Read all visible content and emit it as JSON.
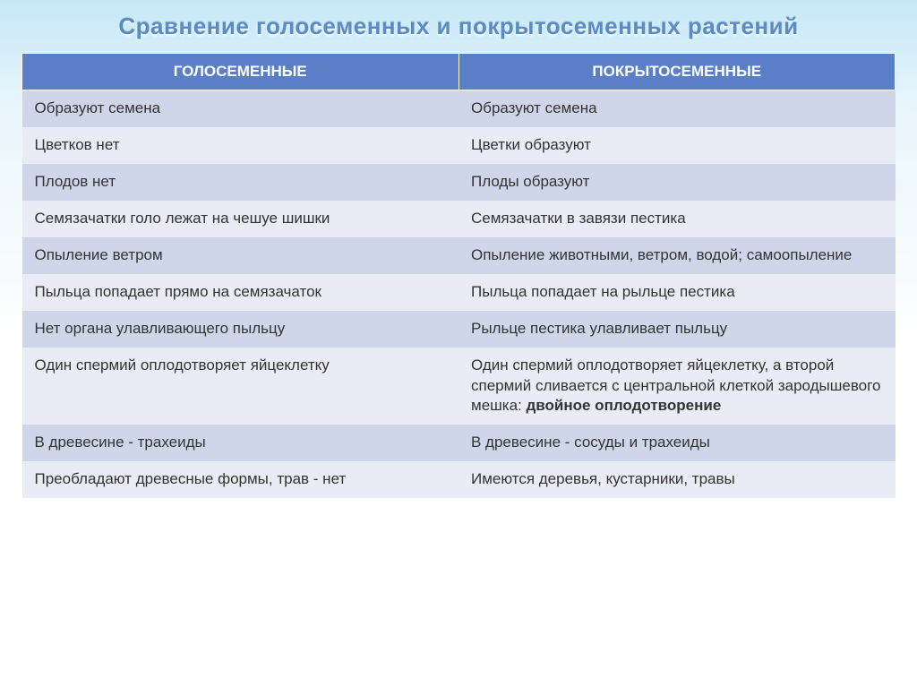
{
  "title": "Сравнение голосеменных и покрытосеменных растений",
  "headers": {
    "l": "ГОЛОСЕМЕННЫЕ",
    "r": "ПОКРЫТОСЕМЕННЫЕ"
  },
  "rows": [
    {
      "l": "Образуют семена",
      "r": "Образуют семена"
    },
    {
      "l": "Цветков нет",
      "r": "Цветки образуют"
    },
    {
      "l": "Плодов нет",
      "r": "Плоды образуют"
    },
    {
      "l": "Семязачатки голо лежат на чешуе шишки",
      "r": "Семязачатки в завязи пестика"
    },
    {
      "l": "Опыление ветром",
      "r": "Опыление животными, ветром, водой; самоопыление"
    },
    {
      "l": "Пыльца попадает прямо на семязачаток",
      "r": "Пыльца попадает на рыльце пестика"
    },
    {
      "l": "Нет органа улавливающего пыльцу",
      "r": "Рыльце пестика улавливает пыльцу"
    },
    {
      "l": "Один спермий оплодотворяет яйцеклетку",
      "r_pre": "Один спермий оплодотворяет яйцеклетку, а второй спермий сливается с центральной клеткой зародышевого мешка: ",
      "r_bold": "двойное оплодотворение"
    },
    {
      "l": "В древесине - трахеиды",
      "r": "В древесине - сосуды и трахеиды"
    },
    {
      "l": "Преобладают древесные формы, трав - нет",
      "r": "Имеются деревья, кустарники, травы"
    }
  ],
  "colors": {
    "header_bg": "#5b7fc7",
    "header_text": "#ffffff",
    "row_odd_bg": "#cfd6ea",
    "row_even_bg": "#e9ecf5",
    "title_color": "#5a8cc4"
  },
  "typography": {
    "title_fontsize": 26,
    "cell_fontsize": 17,
    "font_family": "Segoe UI"
  }
}
